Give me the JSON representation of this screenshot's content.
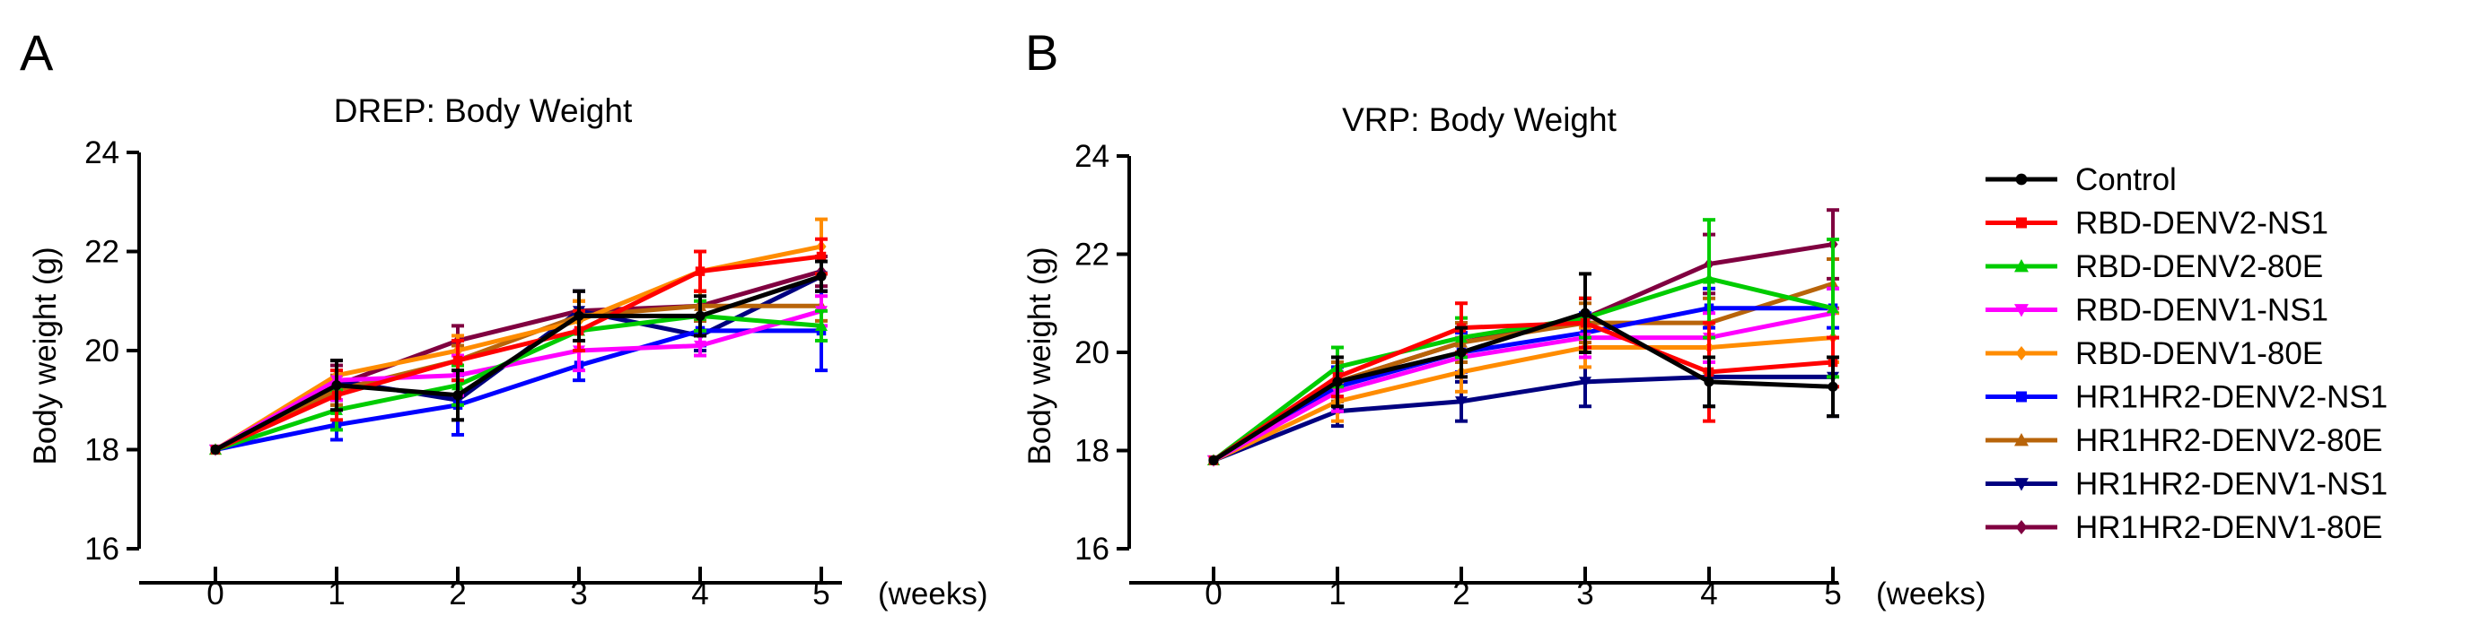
{
  "chart_data": [
    {
      "panel": "A",
      "type": "line",
      "title": "DREP: Body Weight",
      "xlabel": "",
      "ylabel": "Body weight (g)",
      "x_units_label": "(weeks)",
      "x": [
        0,
        1,
        2,
        3,
        4,
        5
      ],
      "xticks": [
        "0",
        "1",
        "2",
        "3",
        "4",
        "5"
      ],
      "ylim": [
        16,
        24
      ],
      "yticks": [
        "16",
        "18",
        "20",
        "22",
        "24"
      ],
      "series": [
        {
          "name": "Control",
          "values": [
            18.0,
            19.3,
            19.1,
            20.7,
            20.7,
            21.5
          ],
          "errors": [
            0.05,
            0.5,
            0.5,
            0.5,
            0.4,
            0.3
          ]
        },
        {
          "name": "RBD-DENV2-NS1",
          "values": [
            18.0,
            19.1,
            19.8,
            20.4,
            21.6,
            21.9
          ],
          "errors": [
            0.05,
            0.5,
            0.4,
            0.4,
            0.4,
            0.35
          ]
        },
        {
          "name": "RBD-DENV2-80E",
          "values": [
            18.0,
            18.8,
            19.3,
            20.4,
            20.7,
            20.5
          ],
          "errors": [
            0.05,
            0.4,
            0.4,
            0.4,
            0.3,
            0.3
          ]
        },
        {
          "name": "RBD-DENV1-NS1",
          "values": [
            18.0,
            19.4,
            19.5,
            20.0,
            20.1,
            20.8
          ],
          "errors": [
            0.05,
            0.4,
            0.4,
            0.4,
            0.2,
            0.3
          ]
        },
        {
          "name": "RBD-DENV1-80E",
          "values": [
            18.0,
            19.5,
            20.0,
            20.6,
            21.6,
            22.1
          ],
          "errors": [
            0.05,
            0.3,
            0.3,
            0.4,
            0.4,
            0.55
          ]
        },
        {
          "name": "HR1HR2-DENV2-NS1",
          "values": [
            18.0,
            18.5,
            18.9,
            19.7,
            20.4,
            20.4
          ],
          "errors": [
            0.05,
            0.3,
            0.6,
            0.3,
            0.3,
            0.8
          ]
        },
        {
          "name": "HR1HR2-DENV2-80E",
          "values": [
            18.0,
            19.2,
            19.8,
            20.7,
            20.9,
            20.9
          ],
          "errors": [
            0.05,
            0.3,
            0.3,
            0.3,
            0.3,
            0.3
          ]
        },
        {
          "name": "HR1HR2-DENV1-NS1",
          "values": [
            18.0,
            19.4,
            19.0,
            20.8,
            20.3,
            21.5
          ],
          "errors": [
            0.05,
            0.4,
            0.4,
            0.4,
            0.3,
            0.3
          ]
        },
        {
          "name": "HR1HR2-DENV1-80E",
          "values": [
            18.0,
            19.3,
            20.2,
            20.8,
            20.9,
            21.6
          ],
          "errors": [
            0.05,
            0.4,
            0.3,
            0.4,
            0.3,
            0.3
          ]
        }
      ]
    },
    {
      "panel": "B",
      "type": "line",
      "title": "VRP: Body Weight",
      "xlabel": "",
      "ylabel": "Body weight (g)",
      "x_units_label": "(weeks)",
      "x": [
        0,
        1,
        2,
        3,
        4,
        5
      ],
      "xticks": [
        "0",
        "1",
        "2",
        "3",
        "4",
        "5"
      ],
      "ylim": [
        16,
        24
      ],
      "yticks": [
        "16",
        "18",
        "20",
        "22",
        "24"
      ],
      "series": [
        {
          "name": "Control",
          "values": [
            17.8,
            19.4,
            20.0,
            20.8,
            19.4,
            19.3
          ],
          "errors": [
            0.05,
            0.5,
            0.5,
            0.8,
            0.5,
            0.6
          ]
        },
        {
          "name": "RBD-DENV2-NS1",
          "values": [
            17.8,
            19.5,
            20.5,
            20.6,
            19.6,
            19.8
          ],
          "errors": [
            0.05,
            0.4,
            0.5,
            0.5,
            1.0,
            0.5
          ]
        },
        {
          "name": "RBD-DENV2-80E",
          "values": [
            17.8,
            19.7,
            20.3,
            20.7,
            21.5,
            20.9
          ],
          "errors": [
            0.05,
            0.4,
            0.4,
            0.4,
            1.2,
            1.4
          ]
        },
        {
          "name": "RBD-DENV1-NS1",
          "values": [
            17.8,
            19.2,
            19.9,
            20.3,
            20.3,
            20.8
          ],
          "errors": [
            0.05,
            0.4,
            0.4,
            0.4,
            0.5,
            0.5
          ]
        },
        {
          "name": "RBD-DENV1-80E",
          "values": [
            17.8,
            19.0,
            19.6,
            20.1,
            20.1,
            20.3
          ],
          "errors": [
            0.05,
            0.4,
            0.4,
            0.4,
            0.5,
            0.5
          ]
        },
        {
          "name": "HR1HR2-DENV2-NS1",
          "values": [
            17.8,
            19.3,
            20.0,
            20.4,
            20.9,
            20.9
          ],
          "errors": [
            0.05,
            0.4,
            0.4,
            0.4,
            0.4,
            0.4
          ]
        },
        {
          "name": "HR1HR2-DENV2-80E",
          "values": [
            17.8,
            19.4,
            20.2,
            20.6,
            20.6,
            21.4
          ],
          "errors": [
            0.05,
            0.4,
            0.4,
            0.4,
            0.5,
            0.5
          ]
        },
        {
          "name": "HR1HR2-DENV1-NS1",
          "values": [
            17.8,
            18.8,
            19.0,
            19.4,
            19.5,
            19.5
          ],
          "errors": [
            0.05,
            0.3,
            0.4,
            0.5,
            0.6,
            0.8
          ]
        },
        {
          "name": "HR1HR2-DENV1-80E",
          "values": [
            17.8,
            19.4,
            20.2,
            20.7,
            21.8,
            22.2
          ],
          "errors": [
            0.05,
            0.4,
            0.4,
            0.4,
            0.6,
            0.7
          ]
        }
      ]
    }
  ],
  "legend": {
    "placement": "right",
    "entries": [
      {
        "name": "Control",
        "color": "#000000",
        "marker": "circle"
      },
      {
        "name": "RBD-DENV2-NS1",
        "color": "#ff0000",
        "marker": "square"
      },
      {
        "name": "RBD-DENV2-80E",
        "color": "#00cc00",
        "marker": "triangle-up"
      },
      {
        "name": "RBD-DENV1-NS1",
        "color": "#ff00ff",
        "marker": "triangle-down"
      },
      {
        "name": "RBD-DENV1-80E",
        "color": "#ff8c00",
        "marker": "diamond"
      },
      {
        "name": "HR1HR2-DENV2-NS1",
        "color": "#0000ff",
        "marker": "square"
      },
      {
        "name": "HR1HR2-DENV2-80E",
        "color": "#b8640a",
        "marker": "triangle-up"
      },
      {
        "name": "HR1HR2-DENV1-NS1",
        "color": "#000080",
        "marker": "triangle-down"
      },
      {
        "name": "HR1HR2-DENV1-80E",
        "color": "#800040",
        "marker": "diamond"
      }
    ]
  }
}
